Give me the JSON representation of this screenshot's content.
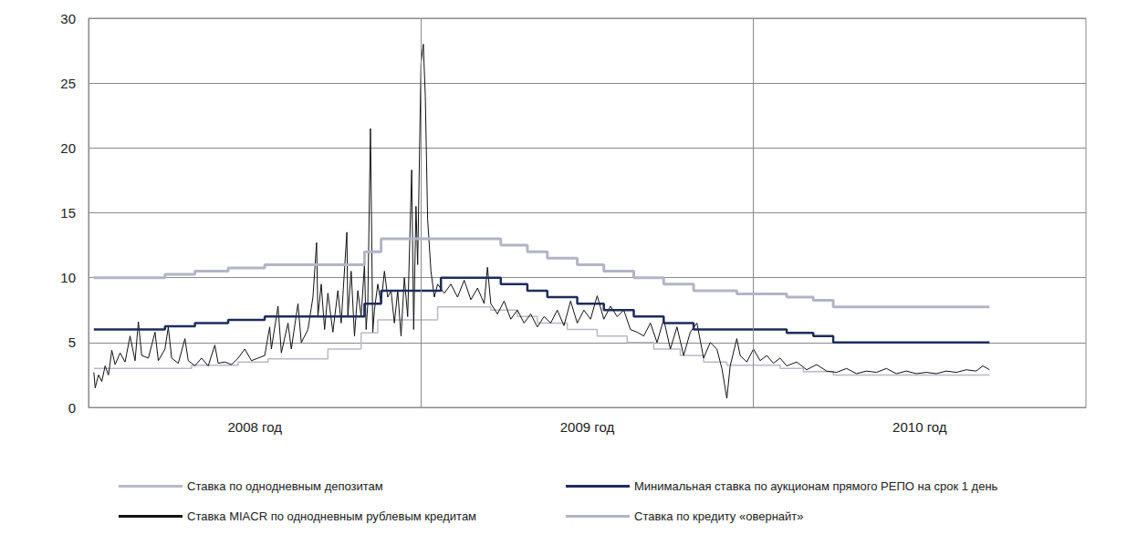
{
  "chart_data": {
    "type": "line",
    "xlim": [
      2008,
      2011
    ],
    "xticks": [
      {
        "value": 2008.5,
        "label": "2008 год"
      },
      {
        "value": 2009.5,
        "label": "2009 год"
      },
      {
        "value": 2010.5,
        "label": "2010 год"
      }
    ],
    "ylim": [
      0,
      30
    ],
    "yticks": [
      0,
      5,
      10,
      15,
      20,
      25,
      30
    ],
    "grid": true,
    "legend": "bottom",
    "series": [
      {
        "name": "Ставка по однодневным депозитам",
        "color": "#b9b9c9",
        "marker": "none",
        "line_style": "step",
        "x": [
          2008.016,
          2008.31,
          2008.45,
          2008.54,
          2008.72,
          2008.82,
          2008.87,
          2009.05,
          2009.21,
          2009.29,
          2009.35,
          2009.44,
          2009.53,
          2009.62,
          2009.7,
          2009.78,
          2009.85,
          2009.92,
          2010.08,
          2010.15,
          2010.24,
          2010.71
        ],
        "values": [
          3.0,
          3.25,
          3.5,
          3.75,
          4.5,
          5.75,
          6.75,
          7.75,
          7.5,
          7.0,
          6.5,
          6.0,
          5.5,
          5.0,
          4.5,
          4.0,
          3.5,
          3.25,
          3.0,
          2.75,
          2.5,
          2.5
        ]
      },
      {
        "name": "Ставка MIACR по однодневным рублевым кредитам",
        "color": "#111111",
        "marker": "none",
        "line_style": "solid",
        "x": [
          2008.016,
          2008.02,
          2008.03,
          2008.04,
          2008.05,
          2008.06,
          2008.07,
          2008.08,
          2008.095,
          2008.11,
          2008.125,
          2008.14,
          2008.15,
          2008.16,
          2008.18,
          2008.2,
          2008.21,
          2008.23,
          2008.24,
          2008.25,
          2008.27,
          2008.29,
          2008.3,
          2008.32,
          2008.34,
          2008.36,
          2008.38,
          2008.39,
          2008.41,
          2008.43,
          2008.45,
          2008.47,
          2008.49,
          2008.51,
          2008.53,
          2008.545,
          2008.55,
          2008.57,
          2008.58,
          2008.6,
          2008.61,
          2008.63,
          2008.64,
          2008.66,
          2008.675,
          2008.686,
          2008.69,
          2008.7,
          2008.71,
          2008.72,
          2008.735,
          2008.75,
          2008.76,
          2008.777,
          2008.78,
          2008.79,
          2008.8,
          2008.81,
          2008.82,
          2008.83,
          2008.835,
          2008.84,
          2008.848,
          2008.855,
          2008.86,
          2008.87,
          2008.88,
          2008.89,
          2008.9,
          2008.91,
          2008.92,
          2008.93,
          2008.94,
          2008.95,
          2008.96,
          2008.972,
          2008.978,
          2008.985,
          2008.99,
          2009.0,
          2009.007,
          2009.013,
          2009.02,
          2009.03,
          2009.04,
          2009.05,
          2009.07,
          2009.09,
          2009.11,
          2009.13,
          2009.15,
          2009.17,
          2009.19,
          2009.2,
          2009.21,
          2009.23,
          2009.25,
          2009.27,
          2009.29,
          2009.31,
          2009.33,
          2009.35,
          2009.37,
          2009.39,
          2009.41,
          2009.43,
          2009.45,
          2009.47,
          2009.49,
          2009.51,
          2009.53,
          2009.55,
          2009.57,
          2009.59,
          2009.61,
          2009.63,
          2009.65,
          2009.67,
          2009.69,
          2009.71,
          2009.73,
          2009.75,
          2009.77,
          2009.79,
          2009.81,
          2009.83,
          2009.85,
          2009.87,
          2009.89,
          2009.905,
          2009.92,
          2009.93,
          2009.95,
          2009.96,
          2009.98,
          2010.0,
          2010.02,
          2010.04,
          2010.06,
          2010.08,
          2010.1,
          2010.13,
          2010.16,
          2010.19,
          2010.22,
          2010.25,
          2010.28,
          2010.31,
          2010.34,
          2010.37,
          2010.4,
          2010.43,
          2010.46,
          2010.49,
          2010.52,
          2010.55,
          2010.58,
          2010.61,
          2010.64,
          2010.67,
          2010.69,
          2010.71
        ],
        "values": [
          2.7,
          1.5,
          2.5,
          2.0,
          3.2,
          2.5,
          4.4,
          3.3,
          4.2,
          3.5,
          5.5,
          3.6,
          6.6,
          4.0,
          3.8,
          5.8,
          3.6,
          4.5,
          6.2,
          3.8,
          3.4,
          5.3,
          3.6,
          3.2,
          3.8,
          3.2,
          4.8,
          3.4,
          3.5,
          3.3,
          3.8,
          4.5,
          3.6,
          3.8,
          4.0,
          6.2,
          4.5,
          7.8,
          4.2,
          6.5,
          4.5,
          8.0,
          5.0,
          6.0,
          8.5,
          12.7,
          7.0,
          9.5,
          6.0,
          8.8,
          5.8,
          9.0,
          6.5,
          13.5,
          7.0,
          10.5,
          5.5,
          9.0,
          7.0,
          11.0,
          6.0,
          8.0,
          21.5,
          5.8,
          7.5,
          9.5,
          8.0,
          10.5,
          8.5,
          9.0,
          6.5,
          9.0,
          5.5,
          10.0,
          7.0,
          18.3,
          6.0,
          15.5,
          11.0,
          26.5,
          28.0,
          24.0,
          14.5,
          10.5,
          8.5,
          9.5,
          8.8,
          9.5,
          8.5,
          9.8,
          8.3,
          9.2,
          8.0,
          10.8,
          8.0,
          7.2,
          8.2,
          6.8,
          7.5,
          6.5,
          7.2,
          6.2,
          7.0,
          6.5,
          7.5,
          6.3,
          8.2,
          6.5,
          7.5,
          6.8,
          8.6,
          6.8,
          7.8,
          7.0,
          7.5,
          6.0,
          5.8,
          5.5,
          6.5,
          5.0,
          6.8,
          4.5,
          6.2,
          4.0,
          5.8,
          6.5,
          3.8,
          5.0,
          4.5,
          3.0,
          0.7,
          3.2,
          5.3,
          4.0,
          3.5,
          4.5,
          3.6,
          4.0,
          3.4,
          3.8,
          3.2,
          3.5,
          2.9,
          3.3,
          2.8,
          2.7,
          3.0,
          2.6,
          2.8,
          2.7,
          3.0,
          2.6,
          2.8,
          2.6,
          2.7,
          2.6,
          2.8,
          2.7,
          2.9,
          2.8,
          3.2,
          2.9
        ]
      },
      {
        "name": "Минимальная ставка по аукционам прямого РЕПО на срок 1 день",
        "color": "#1f2c5c",
        "marker": "none",
        "line_style": "step",
        "x": [
          2008.016,
          2008.23,
          2008.32,
          2008.42,
          2008.53,
          2008.83,
          2008.88,
          2009.06,
          2009.24,
          2009.32,
          2009.38,
          2009.47,
          2009.55,
          2009.64,
          2009.73,
          2009.82,
          2010.1,
          2010.18,
          2010.24,
          2010.71
        ],
        "values": [
          6.0,
          6.25,
          6.5,
          6.75,
          7.0,
          8.0,
          9.0,
          10.0,
          9.5,
          9.0,
          8.5,
          8.0,
          7.5,
          7.0,
          6.5,
          6.0,
          5.75,
          5.5,
          5.0,
          5.0
        ]
      },
      {
        "name": "Ставка по кредиту «овернайт»",
        "color": "#b4b4c6",
        "marker": "none",
        "line_style": "step",
        "x": [
          2008.016,
          2008.23,
          2008.32,
          2008.42,
          2008.53,
          2008.83,
          2008.88,
          2009.24,
          2009.32,
          2009.38,
          2009.47,
          2009.55,
          2009.64,
          2009.73,
          2009.82,
          2009.95,
          2010.1,
          2010.18,
          2010.24,
          2010.71
        ],
        "values": [
          10.0,
          10.25,
          10.5,
          10.75,
          11.0,
          12.0,
          13.0,
          12.5,
          12.0,
          11.5,
          11.0,
          10.5,
          10.0,
          9.5,
          9.0,
          8.75,
          8.5,
          8.25,
          7.75,
          7.75
        ]
      }
    ]
  }
}
